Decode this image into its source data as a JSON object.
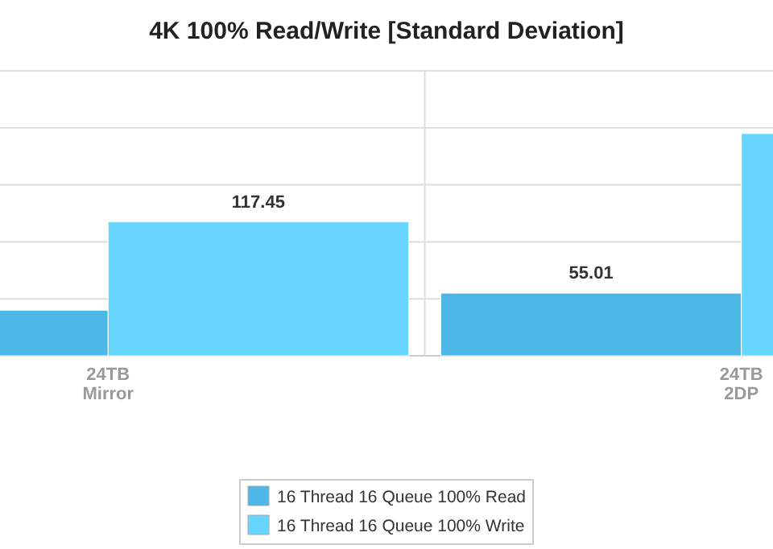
{
  "chart_data": {
    "type": "bar",
    "title": "4K 100% Read/Write [Standard Deviation]",
    "categories": [
      "24TB Mirror",
      "24TB 2DP"
    ],
    "series": [
      {
        "name": "16 Thread 16 Queue 100% Read",
        "color": "#4db8e8",
        "values": [
          40,
          55.01
        ],
        "value_labels": [
          null,
          "55.01"
        ]
      },
      {
        "name": "16 Thread 16 Queue 100% Write",
        "color": "#66d5ff",
        "values": [
          117.45,
          195
        ],
        "value_labels": [
          "117.45",
          null
        ]
      }
    ],
    "ylim": [
      0,
      250
    ],
    "yticks": [
      {
        "value": 0,
        "label": null
      },
      {
        "value": 50,
        "label": null
      },
      {
        "value": 100,
        "label": null
      },
      {
        "value": 150,
        "label": null
      },
      {
        "value": 200,
        "label": null
      },
      {
        "value": 250,
        "label": null
      }
    ],
    "tick_labels": "x",
    "grid": true,
    "legend": "bottom"
  }
}
